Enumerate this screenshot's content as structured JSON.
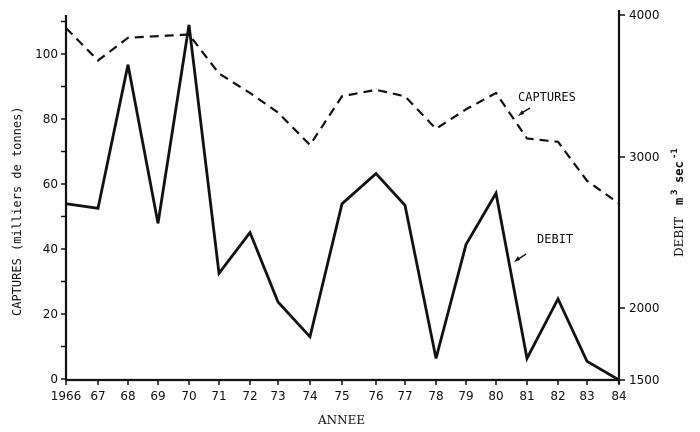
{
  "chart_data": {
    "type": "line",
    "title": "",
    "xlabel": "ANNEE",
    "ylabel_left": "CAPTURES (milliers de tonnes)",
    "ylabel_right_prefix": "DEBIT",
    "ylabel_right_unit": "m3 sec-1",
    "x_tick_labels": [
      "1966",
      "67",
      "68",
      "69",
      "70",
      "71",
      "72",
      "73",
      "74",
      "75",
      "76",
      "77",
      "78",
      "79",
      "80",
      "81",
      "82",
      "83",
      "84"
    ],
    "x": [
      1966,
      1967,
      1968,
      1969,
      1970,
      1971,
      1972,
      1973,
      1974,
      1975,
      1976,
      1977,
      1978,
      1979,
      1980,
      1981,
      1982,
      1983,
      1984
    ],
    "left_axis": {
      "ticks": [
        0,
        20,
        40,
        60,
        80,
        100
      ],
      "minor_ticks": [
        10,
        30,
        50,
        70,
        90,
        110
      ],
      "ylim": [
        0,
        110
      ]
    },
    "right_axis": {
      "ticks": [
        1500,
        2000,
        3000,
        4000
      ],
      "ylim": [
        1500,
        4000
      ]
    },
    "series": [
      {
        "name": "CAPTURES",
        "axis": "left",
        "style": "dashed",
        "values": [
          108,
          98,
          105,
          105.5,
          106,
          94,
          88,
          82,
          72,
          87,
          89,
          87,
          77,
          83,
          88,
          74,
          73,
          61,
          54
        ]
      },
      {
        "name": "DEBIT",
        "axis": "right",
        "style": "solid",
        "values": [
          2690,
          2660,
          3650,
          2560,
          3930,
          2230,
          2500,
          2040,
          1800,
          2690,
          2890,
          2680,
          1650,
          2420,
          2760,
          1650,
          2060,
          1630,
          1500
        ]
      }
    ],
    "annotations": [
      {
        "text": "CAPTURES",
        "series": "CAPTURES"
      },
      {
        "text": "DEBIT",
        "series": "DEBIT"
      }
    ],
    "grid": false,
    "legend": "inline annotations with arrows"
  },
  "labels": {
    "x_axis_title": "ANNEE",
    "left_axis_title": "CAPTURES (milliers de tonnes)",
    "right_axis_title": "DEBIT",
    "right_axis_unit_m": "m",
    "right_axis_unit_exp3": "3",
    "right_axis_unit_sec": "sec",
    "right_axis_unit_exp": "-1",
    "captures_annotation": "CAPTURES",
    "debit_annotation": "DEBIT"
  }
}
